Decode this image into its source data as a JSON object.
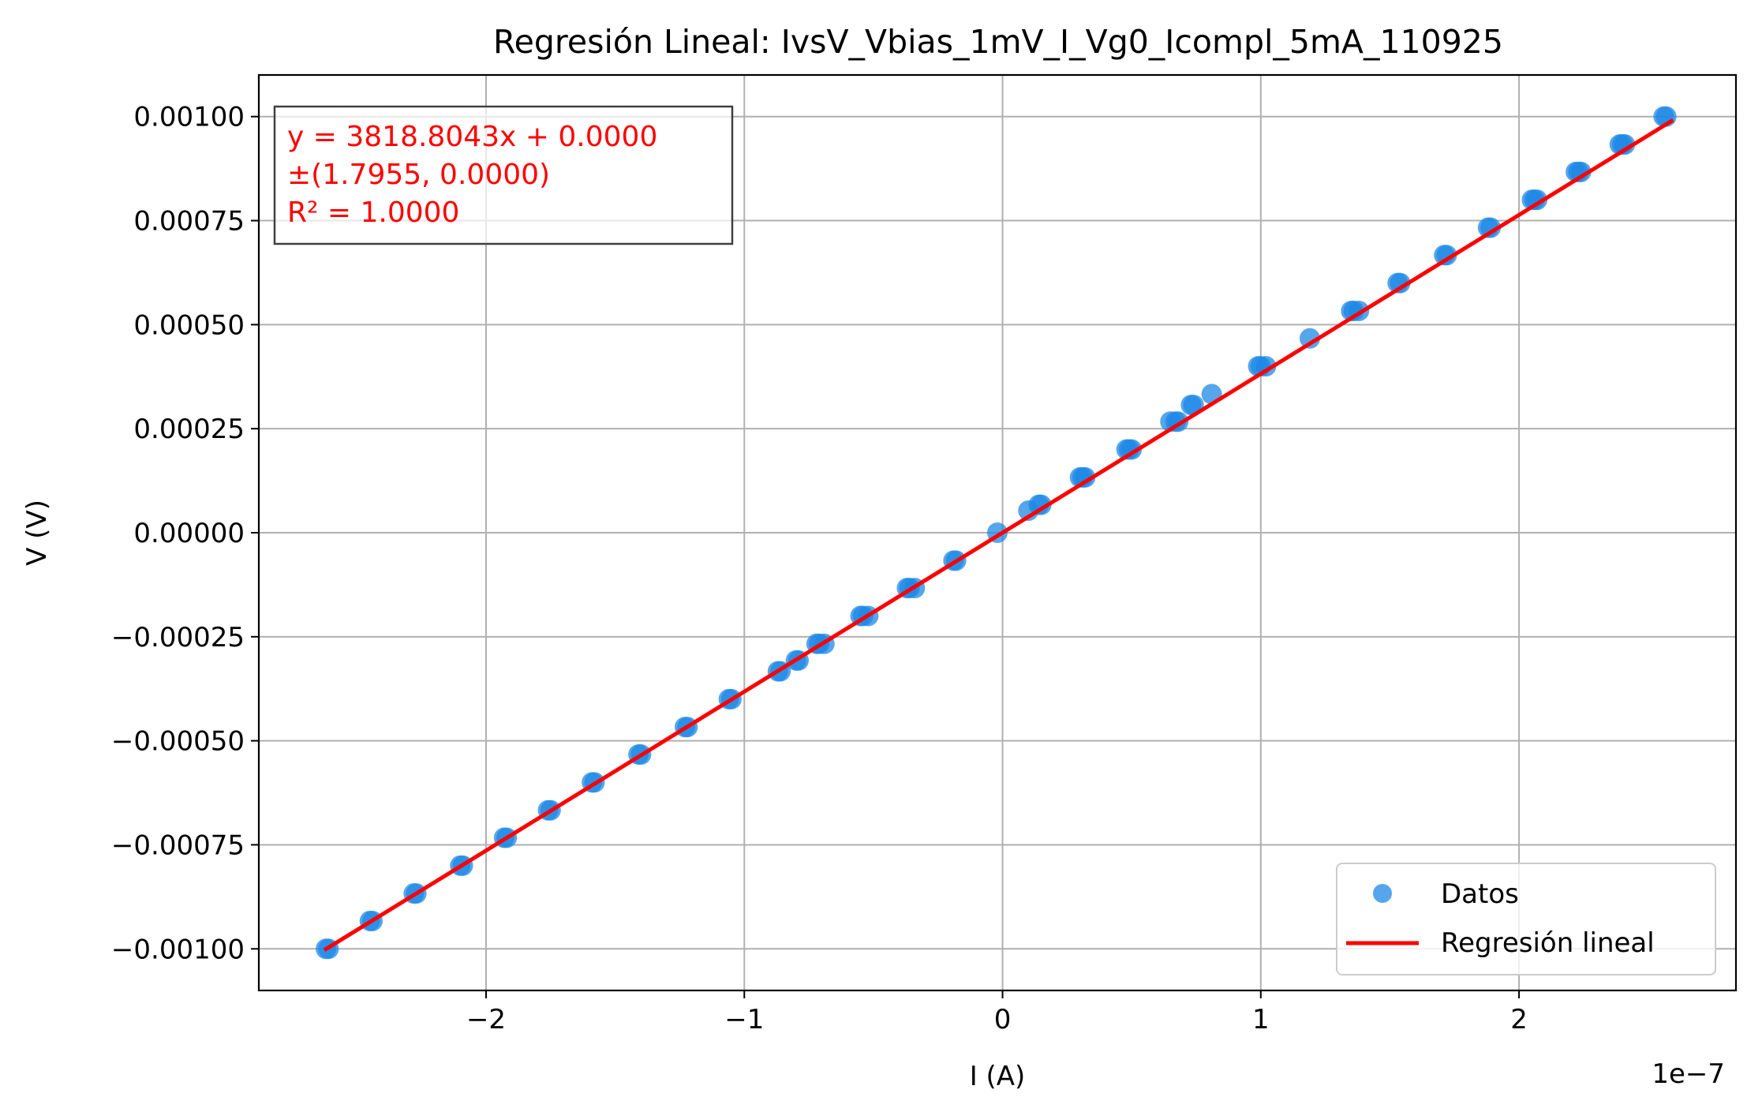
{
  "chart_data": {
    "type": "scatter",
    "title": "Regresión Lineal: IvsV_Vbias_1mV_I_Vg0_Icompl_5mA_110925",
    "xlabel": "I (A)",
    "ylabel": "V (V)",
    "x_offset_label": "1e−7",
    "x_scale": 1e-07,
    "xlim": [
      -2.88,
      2.84
    ],
    "ylim": [
      -0.0011,
      0.0011
    ],
    "x_ticks": [
      -2,
      -1,
      0,
      1,
      2
    ],
    "x_tick_labels": [
      "−2",
      "−1",
      "0",
      "1",
      "2"
    ],
    "y_ticks": [
      -0.001,
      -0.00075,
      -0.0005,
      -0.00025,
      0,
      0.00025,
      0.0005,
      0.00075,
      0.001
    ],
    "y_tick_labels": [
      "−0.00100",
      "−0.00075",
      "−0.00050",
      "−0.00025",
      "0.00000",
      "0.00025",
      "0.00050",
      "0.00075",
      "0.00100"
    ],
    "grid": true,
    "legend_position": "lower-right",
    "colors": {
      "data": "#1e88e5",
      "fit": "#ff0000"
    },
    "series": [
      {
        "name": "Datos",
        "kind": "scatter",
        "x": [
          -2.62,
          -2.61,
          -2.45,
          -2.44,
          -2.28,
          -2.27,
          -2.1,
          -2.09,
          -1.93,
          -1.92,
          -1.76,
          -1.75,
          -1.59,
          -1.58,
          -1.41,
          -1.4,
          -1.23,
          -1.22,
          -1.06,
          -1.05,
          -0.87,
          -0.86,
          -0.8,
          -0.79,
          -0.72,
          -0.71,
          -0.69,
          -0.55,
          -0.54,
          -0.52,
          -0.37,
          -0.36,
          -0.34,
          -0.19,
          -0.18,
          -0.02,
          0.1,
          0.14,
          0.15,
          0.3,
          0.31,
          0.32,
          0.48,
          0.49,
          0.5,
          0.65,
          0.67,
          0.68,
          0.73,
          0.74,
          0.81,
          0.99,
          1.0,
          1.02,
          1.19,
          1.35,
          1.36,
          1.38,
          1.53,
          1.54,
          1.71,
          1.72,
          1.88,
          1.89,
          2.05,
          2.06,
          2.07,
          2.22,
          2.23,
          2.24,
          2.39,
          2.4,
          2.41,
          2.56,
          2.57
        ],
        "y": [
          -0.001,
          -0.001,
          -0.000933,
          -0.000933,
          -0.000867,
          -0.000867,
          -0.0008,
          -0.0008,
          -0.000733,
          -0.000733,
          -0.000667,
          -0.000667,
          -0.0006,
          -0.0006,
          -0.000533,
          -0.000533,
          -0.000467,
          -0.000467,
          -0.0004,
          -0.0004,
          -0.000333,
          -0.000333,
          -0.000307,
          -0.000307,
          -0.000267,
          -0.000267,
          -0.000267,
          -0.0002,
          -0.0002,
          -0.0002,
          -0.000133,
          -0.000133,
          -0.000133,
          -6.7e-05,
          -6.7e-05,
          0.0,
          5.3e-05,
          6.7e-05,
          6.7e-05,
          0.000133,
          0.000133,
          0.000133,
          0.0002,
          0.0002,
          0.0002,
          0.000267,
          0.000267,
          0.000267,
          0.000307,
          0.000307,
          0.000333,
          0.0004,
          0.0004,
          0.0004,
          0.000467,
          0.000533,
          0.000533,
          0.000533,
          0.0006,
          0.0006,
          0.000667,
          0.000667,
          0.000733,
          0.000733,
          0.0008,
          0.0008,
          0.0008,
          0.000867,
          0.000867,
          0.000867,
          0.000933,
          0.000933,
          0.000933,
          0.001,
          0.001
        ]
      },
      {
        "name": "Regresión lineal",
        "kind": "line",
        "slope": 3818.8043,
        "intercept": 0.0,
        "x": [
          -2.62,
          2.59
        ]
      }
    ],
    "annotation": {
      "lines": [
        "y = 3818.8043x + 0.0000",
        "±(1.7955, 0.0000)",
        "R² = 1.0000"
      ],
      "position": "top-left"
    }
  }
}
